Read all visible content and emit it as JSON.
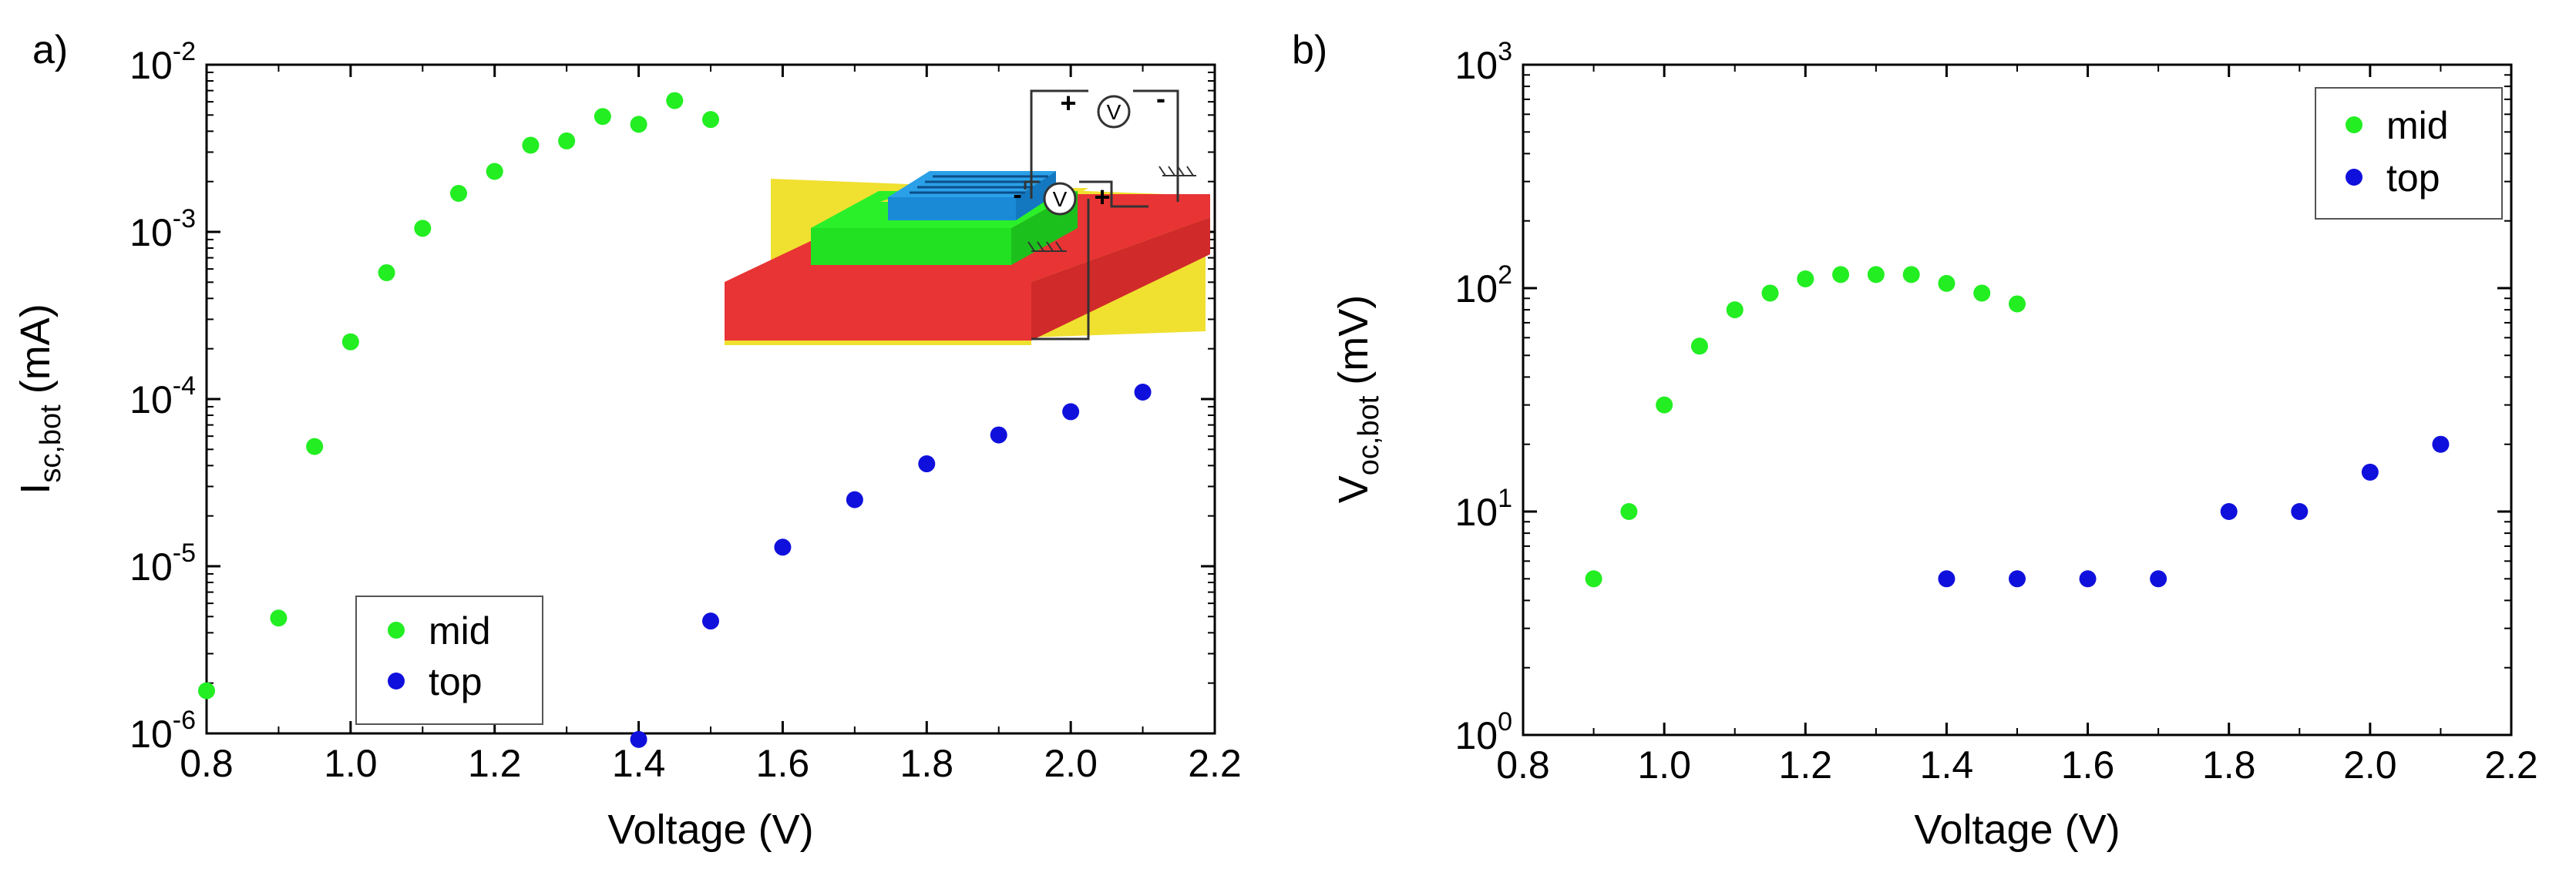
{
  "colors": {
    "mid": "#22ee22",
    "top": "#1010dd",
    "axis": "#000000",
    "background": "#ffffff"
  },
  "chart_data": [
    {
      "panel_label": "a)",
      "type": "scatter",
      "xlabel": "Voltage (V)",
      "ylabel": {
        "main": "I",
        "sub": "sc,bot",
        "unit": "(mA)"
      },
      "yscale": "log",
      "xlim": [
        0.8,
        2.2
      ],
      "ylim_exp": [
        -6,
        -2
      ],
      "xticks": [
        "0.8",
        "1.0",
        "1.2",
        "1.4",
        "1.6",
        "1.8",
        "2.0",
        "2.2"
      ],
      "yticks": [
        {
          "base": "10",
          "exp": "-6"
        },
        {
          "base": "10",
          "exp": "-5"
        },
        {
          "base": "10",
          "exp": "-4"
        },
        {
          "base": "10",
          "exp": "-3"
        },
        {
          "base": "10",
          "exp": "-2"
        }
      ],
      "legend": {
        "position": "bottom-left",
        "entries": [
          "mid",
          "top"
        ]
      },
      "inset": "stacked cell schematic with voltmeter symbols",
      "inset_labels": {
        "voltmeter": "V",
        "plus": "+",
        "minus": "-"
      },
      "series": [
        {
          "name": "mid",
          "color": "#22ee22",
          "x": [
            0.8,
            0.9,
            0.95,
            1.0,
            1.05,
            1.1,
            1.15,
            1.2,
            1.25,
            1.3,
            1.35,
            1.4,
            1.45,
            1.5
          ],
          "y": [
            1.8e-06,
            4.9e-06,
            5.2e-05,
            0.00022,
            0.00057,
            0.00105,
            0.0017,
            0.0023,
            0.0033,
            0.0035,
            0.0049,
            0.0044,
            0.0061,
            0.0047
          ]
        },
        {
          "name": "top",
          "color": "#1010dd",
          "x": [
            1.4,
            1.5,
            1.6,
            1.7,
            1.8,
            1.9,
            2.0,
            2.1
          ],
          "y": [
            9.2e-07,
            4.7e-06,
            1.3e-05,
            2.5e-05,
            4.1e-05,
            6.1e-05,
            8.4e-05,
            0.00011
          ]
        }
      ]
    },
    {
      "panel_label": "b)",
      "type": "scatter",
      "xlabel": "Voltage (V)",
      "ylabel": {
        "main": "V",
        "sub": "oc,bot",
        "unit": "(mV)"
      },
      "yscale": "log",
      "xlim": [
        0.8,
        2.2
      ],
      "ylim_exp": [
        0,
        3
      ],
      "xticks": [
        "0.8",
        "1.0",
        "1.2",
        "1.4",
        "1.6",
        "1.8",
        "2.0",
        "2.2"
      ],
      "yticks": [
        {
          "base": "10",
          "exp": "0"
        },
        {
          "base": "10",
          "exp": "1"
        },
        {
          "base": "10",
          "exp": "2"
        },
        {
          "base": "10",
          "exp": "3"
        }
      ],
      "legend": {
        "position": "top-right",
        "entries": [
          "mid",
          "top"
        ]
      },
      "series": [
        {
          "name": "mid",
          "color": "#22ee22",
          "x": [
            0.9,
            0.95,
            1.0,
            1.05,
            1.1,
            1.15,
            1.2,
            1.25,
            1.3,
            1.35,
            1.4,
            1.45,
            1.5
          ],
          "y": [
            5,
            10,
            30,
            55,
            80,
            95,
            110,
            115,
            115,
            115,
            105,
            95,
            85
          ]
        },
        {
          "name": "top",
          "color": "#1010dd",
          "x": [
            1.4,
            1.5,
            1.6,
            1.7,
            1.8,
            1.9,
            2.0,
            2.1
          ],
          "y": [
            5,
            5,
            5,
            5,
            10,
            10,
            15,
            20
          ]
        }
      ]
    }
  ]
}
